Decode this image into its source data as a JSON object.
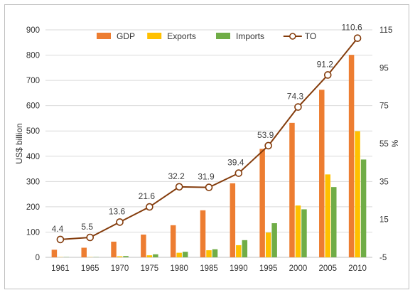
{
  "chart_data": {
    "type": "bar",
    "categories": [
      "1961",
      "1965",
      "1970",
      "1975",
      "1980",
      "1985",
      "1990",
      "1995",
      "2000",
      "2005",
      "2010"
    ],
    "series": [
      {
        "name": "GDP",
        "type": "bar",
        "axis": "left",
        "color": "#ED7D31",
        "values": [
          30,
          38,
          62,
          90,
          127,
          186,
          293,
          429,
          532,
          663,
          801
        ]
      },
      {
        "name": "Exports",
        "type": "bar",
        "axis": "left",
        "color": "#FFC000",
        "values": [
          1,
          1,
          4,
          8,
          18,
          28,
          48,
          98,
          205,
          328,
          499
        ]
      },
      {
        "name": "Imports",
        "type": "bar",
        "axis": "left",
        "color": "#70AD47",
        "values": [
          1,
          1,
          5,
          12,
          22,
          32,
          68,
          135,
          190,
          278,
          387
        ]
      },
      {
        "name": "TO",
        "type": "line",
        "axis": "right",
        "color": "#843C0C",
        "values": [
          4.4,
          5.5,
          13.6,
          21.6,
          32.2,
          31.9,
          39.4,
          53.9,
          74.3,
          91.2,
          110.6
        ],
        "labels": [
          "4.4",
          "5.5",
          "13.6",
          "21.6",
          "32.2",
          "31.9",
          "39.4",
          "53.9",
          "74.3",
          "91.2",
          "110.6"
        ]
      }
    ],
    "ylabel": "US$ billion",
    "ylim": [
      0,
      900
    ],
    "yticks": [
      "0",
      "100",
      "200",
      "300",
      "400",
      "500",
      "600",
      "700",
      "800",
      "900"
    ],
    "y2label": "%",
    "y2lim": [
      -5,
      115
    ],
    "y2ticks": [
      "-5",
      "15",
      "35",
      "55",
      "75",
      "95",
      "115"
    ],
    "grid": true,
    "legend_position": "top"
  }
}
